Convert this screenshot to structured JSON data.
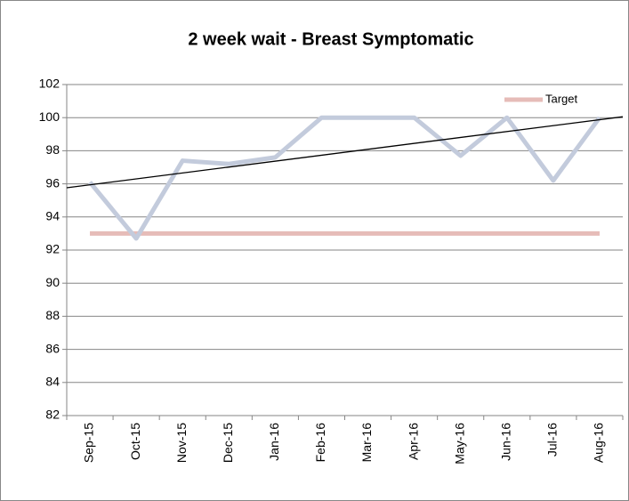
{
  "chart_data": {
    "type": "line",
    "title": "2 week wait - Breast Symptomatic",
    "categories": [
      "Sep-15",
      "Oct-15",
      "Nov-15",
      "Dec-15",
      "Jan-16",
      "Feb-16",
      "Mar-16",
      "Apr-16",
      "May-16",
      "Jun-16",
      "Jul-16",
      "Aug-16"
    ],
    "series": [
      {
        "color": "#c3cbdc",
        "values": [
          96.1,
          92.7,
          97.4,
          97.2,
          97.6,
          100,
          100,
          100,
          97.7,
          100,
          96.2,
          100
        ],
        "trendline": true,
        "trend_color": "#000000"
      },
      {
        "name": "Target",
        "color": "#e6bcb8",
        "values": [
          93,
          93,
          93,
          93,
          93,
          93,
          93,
          93,
          93,
          93,
          93,
          93
        ]
      }
    ],
    "ylim": [
      82,
      102
    ],
    "yticks": [
      82,
      84,
      86,
      88,
      90,
      92,
      94,
      96,
      98,
      100,
      102
    ],
    "grid": true,
    "legend": "top-right"
  }
}
